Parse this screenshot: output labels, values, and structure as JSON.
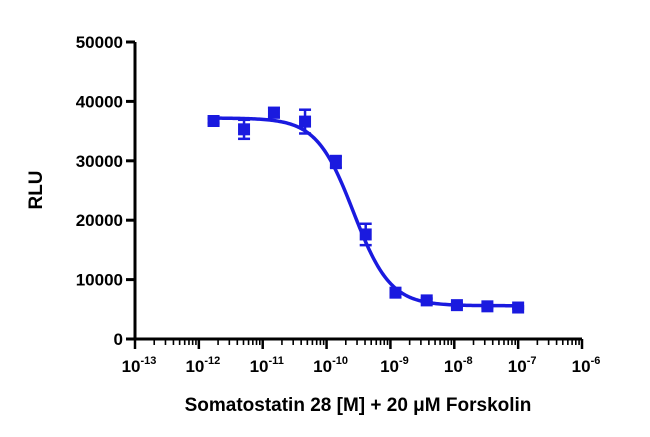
{
  "chart_data": {
    "type": "scatter",
    "title": "",
    "xlabel": "Somatostatin 28 [M] + 20 μM Forskolin",
    "ylabel": "RLU",
    "xscale": "log",
    "xlim": [
      1e-13,
      1e-06
    ],
    "ylim": [
      0,
      50000
    ],
    "x_ticks": [
      {
        "base": "10",
        "exp": "-13",
        "value": 1e-13
      },
      {
        "base": "10",
        "exp": "-12",
        "value": 1e-12
      },
      {
        "base": "10",
        "exp": "-11",
        "value": 1e-11
      },
      {
        "base": "10",
        "exp": "-10",
        "value": 1e-10
      },
      {
        "base": "10",
        "exp": "-9",
        "value": 1e-09
      },
      {
        "base": "10",
        "exp": "-8",
        "value": 1e-08
      },
      {
        "base": "10",
        "exp": "-7",
        "value": 1e-07
      },
      {
        "base": "10",
        "exp": "-6",
        "value": 1e-06
      }
    ],
    "y_ticks": [
      "0",
      "10000",
      "20000",
      "30000",
      "40000",
      "50000"
    ],
    "y_tick_values": [
      0,
      10000,
      20000,
      30000,
      40000,
      50000
    ],
    "grid": false,
    "color": "#1a1adf",
    "points": [
      {
        "x": 1.7e-12,
        "y": 36700,
        "err": 400
      },
      {
        "x": 5.1e-12,
        "y": 35300,
        "err": 1600
      },
      {
        "x": 1.5e-11,
        "y": 38100,
        "err": 800
      },
      {
        "x": 4.6e-11,
        "y": 36600,
        "err": 2000
      },
      {
        "x": 1.4e-10,
        "y": 29800,
        "err": 1000
      },
      {
        "x": 4.1e-10,
        "y": 17600,
        "err": 1800
      },
      {
        "x": 1.2e-09,
        "y": 7800,
        "err": 700
      },
      {
        "x": 3.7e-09,
        "y": 6500,
        "err": 300
      },
      {
        "x": 1.1e-08,
        "y": 5700,
        "err": 300
      },
      {
        "x": 3.3e-08,
        "y": 5500,
        "err": 200
      },
      {
        "x": 1e-07,
        "y": 5300,
        "err": 200
      }
    ],
    "fit": {
      "model": "sigmoidal dose-response",
      "top": 37200,
      "bottom": 5600,
      "log_ic50": -9.58,
      "hill_slope": -1.5,
      "x_range": [
        1.7e-12,
        1e-07
      ]
    }
  }
}
